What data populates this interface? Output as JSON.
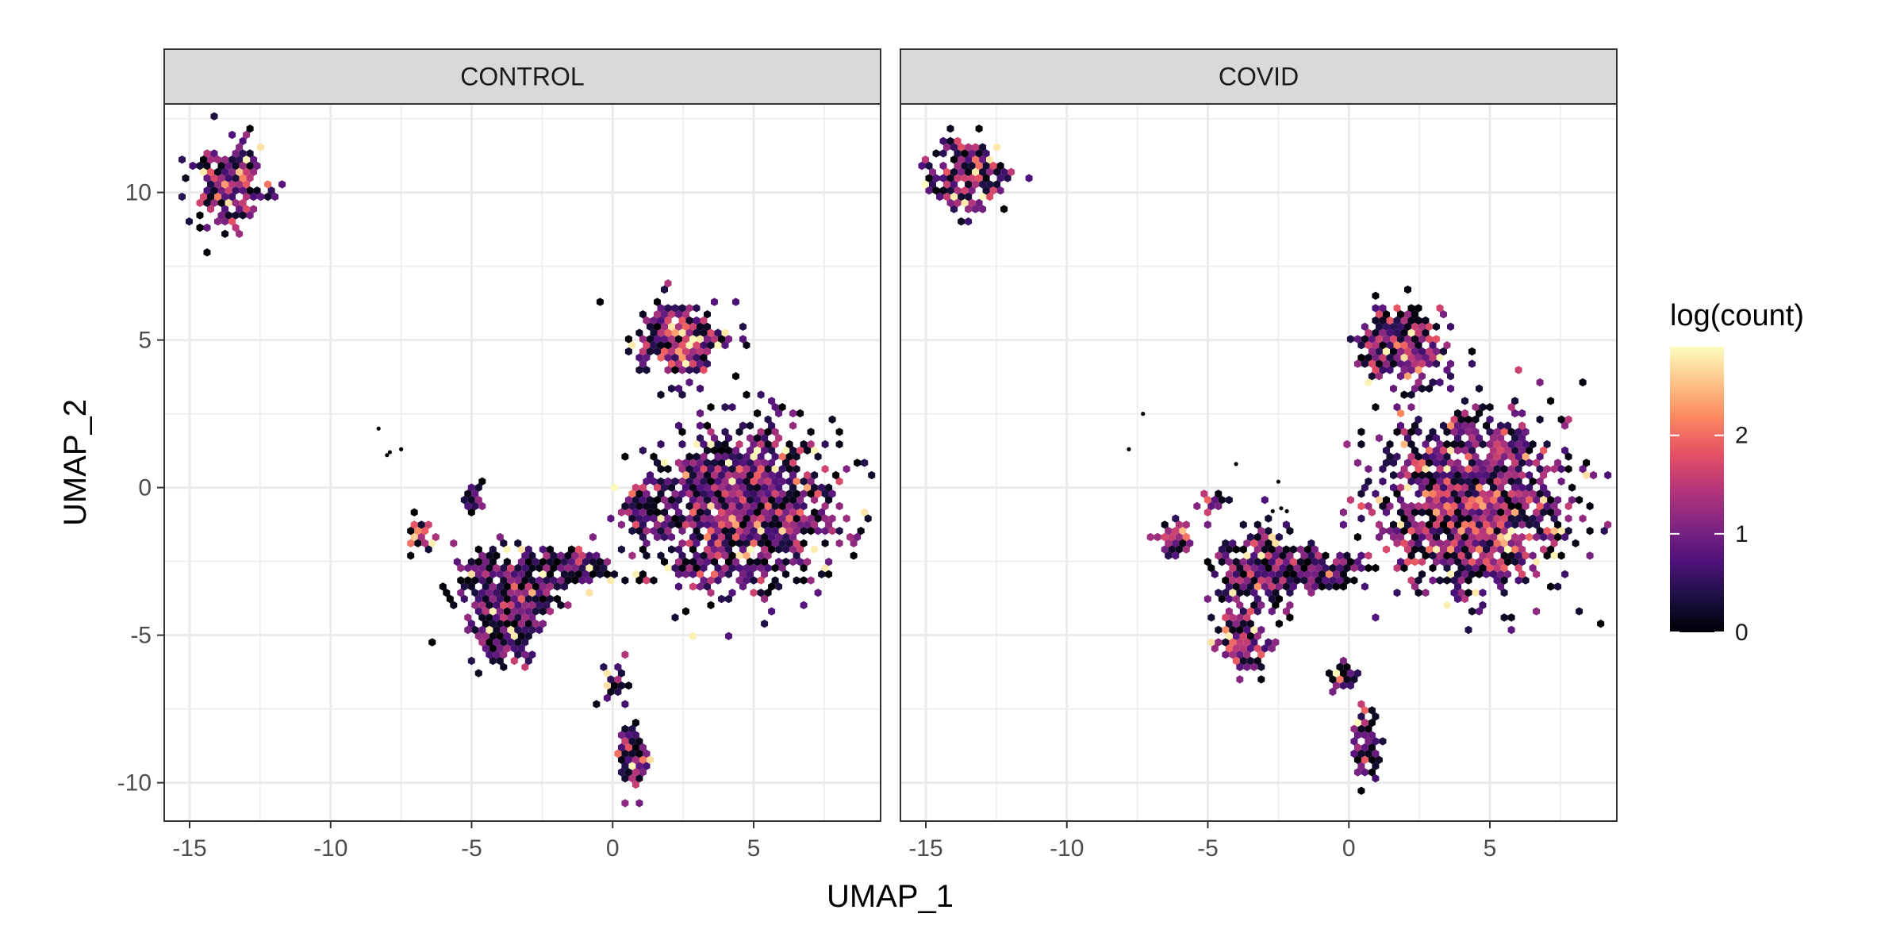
{
  "chart_data": {
    "type": "hexbin",
    "facets": [
      {
        "label": "CONTROL",
        "clusters": [
          {
            "cx": -13.6,
            "cy": 10.3,
            "rx": 1.1,
            "ry": 1.2,
            "n": 110,
            "level": 1.4
          },
          {
            "cx": 2.4,
            "cy": 5.0,
            "rx": 1.4,
            "ry": 1.1,
            "n": 160,
            "level": 1.6
          },
          {
            "cx": 4.6,
            "cy": -0.7,
            "rx": 3.0,
            "ry": 2.4,
            "n": 620,
            "level": 1.3
          },
          {
            "cx": 1.1,
            "cy": -0.8,
            "rx": 0.6,
            "ry": 0.8,
            "n": 40,
            "level": 1.2
          },
          {
            "cx": -6.8,
            "cy": -1.6,
            "rx": 0.4,
            "ry": 0.5,
            "n": 18,
            "level": 1.8
          },
          {
            "cx": -5.0,
            "cy": -0.4,
            "rx": 0.3,
            "ry": 0.4,
            "n": 8,
            "level": 1.3
          },
          {
            "cx": -3.7,
            "cy": -3.7,
            "rx": 1.5,
            "ry": 1.5,
            "n": 170,
            "level": 1.1
          },
          {
            "cx": -3.8,
            "cy": -5.1,
            "rx": 1.0,
            "ry": 0.9,
            "n": 60,
            "level": 1.2
          },
          {
            "cx": -1.5,
            "cy": -2.7,
            "rx": 1.1,
            "ry": 0.6,
            "n": 60,
            "level": 1.1
          },
          {
            "cx": 0.1,
            "cy": -6.6,
            "rx": 0.35,
            "ry": 0.6,
            "n": 18,
            "level": 1.0
          },
          {
            "cx": 0.7,
            "cy": -9.1,
            "rx": 0.45,
            "ry": 0.9,
            "n": 40,
            "level": 1.7
          }
        ],
        "points": [
          [
            -8.3,
            2.0
          ],
          [
            -7.9,
            1.2
          ],
          [
            -7.5,
            1.3
          ],
          [
            -8.0,
            1.1
          ]
        ]
      },
      {
        "label": "COVID",
        "clusters": [
          {
            "cx": -13.5,
            "cy": 10.5,
            "rx": 1.2,
            "ry": 1.1,
            "n": 110,
            "level": 1.3
          },
          {
            "cx": 2.0,
            "cy": 4.8,
            "rx": 1.4,
            "ry": 1.2,
            "n": 140,
            "level": 1.3
          },
          {
            "cx": 4.4,
            "cy": -0.5,
            "rx": 3.0,
            "ry": 2.6,
            "n": 620,
            "level": 1.5
          },
          {
            "cx": -6.2,
            "cy": -1.7,
            "rx": 0.6,
            "ry": 0.6,
            "n": 25,
            "level": 1.6
          },
          {
            "cx": -5.0,
            "cy": -0.4,
            "rx": 0.3,
            "ry": 0.4,
            "n": 10,
            "level": 1.5
          },
          {
            "cx": -3.2,
            "cy": -2.9,
            "rx": 1.4,
            "ry": 1.3,
            "n": 150,
            "level": 1.1
          },
          {
            "cx": -3.8,
            "cy": -5.2,
            "rx": 0.9,
            "ry": 0.9,
            "n": 60,
            "level": 1.6
          },
          {
            "cx": -1.0,
            "cy": -2.8,
            "rx": 1.3,
            "ry": 0.5,
            "n": 60,
            "level": 1.1
          },
          {
            "cx": -0.2,
            "cy": -6.4,
            "rx": 0.5,
            "ry": 0.5,
            "n": 14,
            "level": 0.8
          },
          {
            "cx": 0.6,
            "cy": -8.7,
            "rx": 0.4,
            "ry": 1.0,
            "n": 35,
            "level": 1.2
          }
        ],
        "points": [
          [
            -7.3,
            2.5
          ],
          [
            -7.8,
            1.3
          ],
          [
            -4.0,
            0.8
          ],
          [
            -2.5,
            0.2
          ],
          [
            -2.7,
            -0.8
          ],
          [
            -2.4,
            -0.7
          ],
          [
            -2.2,
            -0.8
          ]
        ]
      }
    ],
    "xlabel": "UMAP_1",
    "ylabel": "UMAP_2",
    "xlim": [
      -15.9,
      9.5
    ],
    "ylim": [
      -11.3,
      13.0
    ],
    "xticks": [
      -15,
      -10,
      -5,
      0,
      5
    ],
    "yticks": [
      -10,
      -5,
      0,
      5,
      10
    ],
    "xtick_labels": [
      "-15",
      "-10",
      "-5",
      "0",
      "5"
    ],
    "ytick_labels": [
      "-10",
      "-5",
      "0",
      "5",
      "10"
    ],
    "grid": true,
    "legend": {
      "title": "log(count)",
      "position": "right",
      "range": [
        0,
        2.9
      ],
      "ticks": [
        0,
        1,
        2
      ],
      "tick_labels": [
        "0",
        "1",
        "2"
      ],
      "palette": "magma",
      "colors": [
        "#000004",
        "#1c1044",
        "#4f127b",
        "#812581",
        "#b5367a",
        "#e55064",
        "#fb8761",
        "#fec287",
        "#fcfdbf"
      ]
    }
  }
}
